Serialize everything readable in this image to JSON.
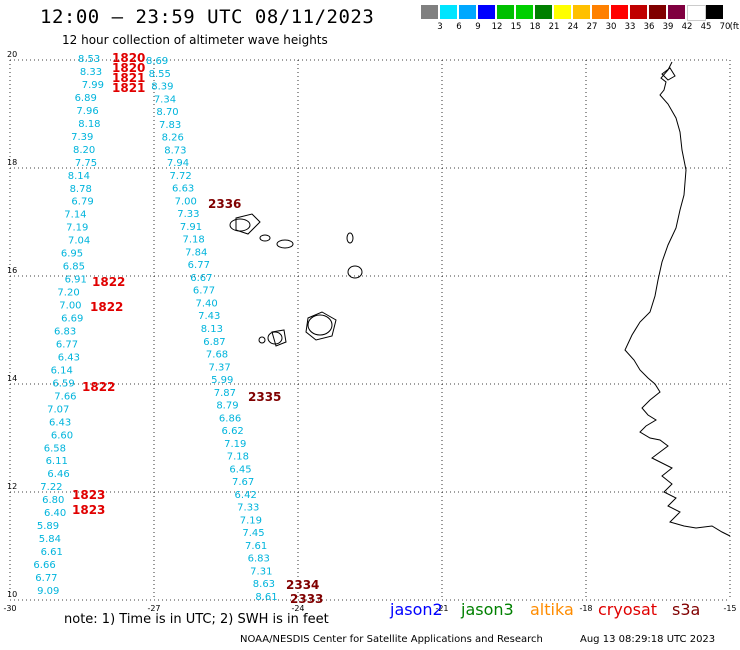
{
  "header": {
    "title": "12:00 – 23:59 UTC 08/11/2023",
    "subtitle": "12 hour collection of altimeter wave heights"
  },
  "colorbar": {
    "labels": [
      "3",
      "6",
      "9",
      "12",
      "15",
      "18",
      "21",
      "24",
      "27",
      "30",
      "33",
      "36",
      "39",
      "42",
      "45",
      "70"
    ],
    "unit": "(ft)",
    "colors": [
      "#808080",
      "#00e5ff",
      "#00a8ff",
      "#0000ff",
      "#00c000",
      "#00d000",
      "#008000",
      "#ffff00",
      "#ffc000",
      "#ff8000",
      "#ff0000",
      "#c00000",
      "#800000",
      "#800040",
      "#ffffff",
      "#000000"
    ]
  },
  "axes": {
    "lat_labels": [
      "20",
      "18",
      "16",
      "14",
      "12",
      "10"
    ],
    "lon_labels": [
      "-30",
      "-27",
      "-24",
      "-21",
      "-18",
      "-15"
    ],
    "lat_range": [
      10,
      20
    ],
    "lon_range": [
      -30,
      -15
    ],
    "grid": "dotted"
  },
  "tracks": [
    {
      "name": "track-1",
      "color": "#00b4dc",
      "values": [
        "8.53",
        "8.33",
        "7.99",
        "6.89",
        "7.96",
        "8.18",
        "7.39",
        "8.20",
        "7.75",
        "8.14",
        "8.78",
        "6.79",
        "7.14",
        "7.19",
        "7.04",
        "6.95",
        "6.85",
        "6.91",
        "7.20",
        "7.00",
        "6.69",
        "6.83",
        "6.77",
        "6.43",
        "6.14",
        "6.59",
        "7.66",
        "7.07",
        "6.43",
        "6.60",
        "6.58",
        "6.11",
        "6.46",
        "7.22",
        "6.80",
        "6.40",
        "5.89",
        "5.84",
        "6.61",
        "6.66",
        "6.77",
        "9.09"
      ]
    },
    {
      "name": "track-2",
      "color": "#00b4dc",
      "values": [
        "8.69",
        "8.55",
        "8.39",
        "7.34",
        "8.70",
        "7.83",
        "8.26",
        "8.73",
        "7.94",
        "7.72",
        "6.63",
        "7.00",
        "7.33",
        "7.91",
        "7.18",
        "7.84",
        "6.77",
        "6.67",
        "6.77",
        "7.40",
        "7.43",
        "8.13",
        "6.87",
        "7.68",
        "7.37",
        "5.99",
        "7.87",
        "8.79",
        "6.86",
        "6.62",
        "7.19",
        "7.18",
        "6.45",
        "7.67",
        "6.42",
        "7.33",
        "7.19",
        "7.45",
        "7.61",
        "6.83",
        "7.31",
        "8.63",
        "8.61"
      ]
    }
  ],
  "time_labels": [
    {
      "text": "1820",
      "color": "#e00000"
    },
    {
      "text": "1820",
      "color": "#e00000"
    },
    {
      "text": "1821",
      "color": "#e00000"
    },
    {
      "text": "1821",
      "color": "#e00000"
    },
    {
      "text": "2336",
      "color": "#800000"
    },
    {
      "text": "1822",
      "color": "#e00000"
    },
    {
      "text": "1822",
      "color": "#e00000"
    },
    {
      "text": "1822",
      "color": "#e00000"
    },
    {
      "text": "2335",
      "color": "#800000"
    },
    {
      "text": "1823",
      "color": "#e00000"
    },
    {
      "text": "1823",
      "color": "#e00000"
    },
    {
      "text": "2334",
      "color": "#800000"
    },
    {
      "text": "2333",
      "color": "#800000"
    }
  ],
  "legend": {
    "note": "note:  1) Time is in UTC;  2) SWH is in feet",
    "satellites": [
      {
        "name": "jason2",
        "color": "#0000ff"
      },
      {
        "name": "jason3",
        "color": "#008000"
      },
      {
        "name": "altika",
        "color": "#ff8c00"
      },
      {
        "name": "cryosat",
        "color": "#e00000"
      },
      {
        "name": "s3a",
        "color": "#800000"
      }
    ]
  },
  "footer": {
    "left": "NOAA/NESDIS Center for Satellite Applications and Research",
    "right": "Aug 13 08:29:18 UTC 2023"
  }
}
